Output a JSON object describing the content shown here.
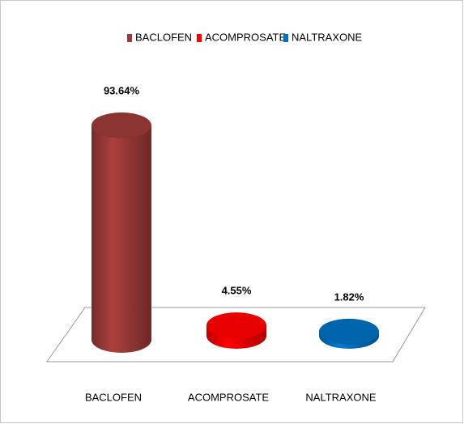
{
  "chart_data": {
    "type": "cylinder-bar",
    "categories": [
      "BACLOFEN",
      "ACOMPROSATE",
      "NALTRAXONE"
    ],
    "values": [
      93.64,
      4.55,
      1.82
    ],
    "value_labels": [
      "93.64%",
      "4.55%",
      "1.82%"
    ],
    "colors": [
      "#9b3a37",
      "#ff0000",
      "#0070c0"
    ],
    "legend": "top"
  }
}
